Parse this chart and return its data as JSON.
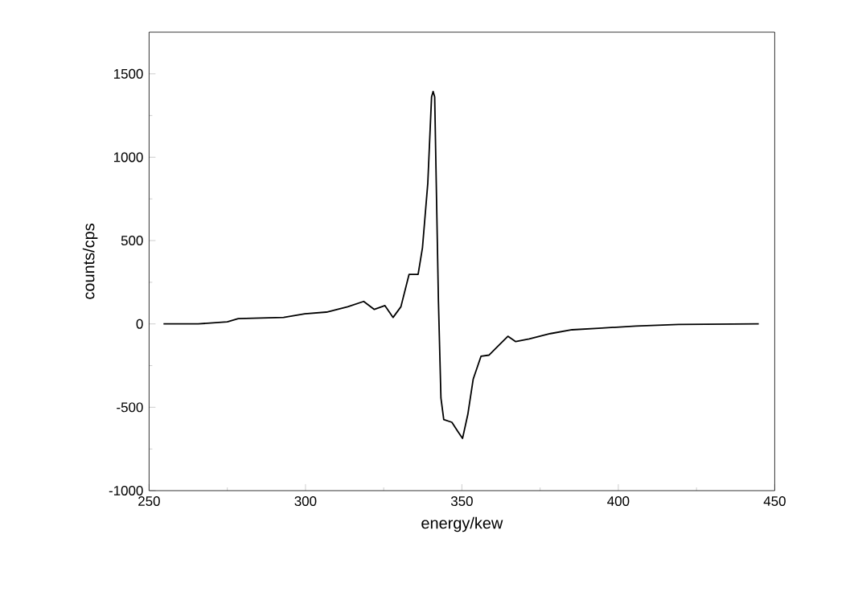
{
  "chart_data": {
    "type": "line",
    "xlabel": "energy/kew",
    "ylabel": "counts/cps",
    "xlim": [
      250,
      450
    ],
    "ylim": [
      -1000,
      1750
    ],
    "xticks": [
      250,
      300,
      350,
      400,
      450
    ],
    "yticks": [
      -1000,
      -500,
      0,
      500,
      1000,
      1500
    ],
    "series": [
      {
        "color": "#000000",
        "x": [
          254.6,
          265.7,
          275,
          278.5,
          293,
          299.8,
          306.7,
          313.5,
          318.6,
          322,
          325.4,
          328,
          330.5,
          333.1,
          336,
          337.4,
          339.1,
          340.3,
          340.8,
          341.3,
          341.8,
          342.5,
          343.3,
          344.2,
          346.8,
          348.5,
          350.2,
          351.9,
          353.6,
          356.1,
          358.7,
          362.1,
          364.7,
          367.2,
          371.5,
          378.3,
          385.2,
          393.7,
          405.6,
          419.3,
          444.9
        ],
        "values": [
          0,
          0,
          13,
          32,
          39,
          61,
          71,
          103,
          135,
          87,
          110,
          39,
          103,
          297,
          297,
          458,
          845,
          1361,
          1394,
          1361,
          845,
          135,
          -445,
          -574,
          -590,
          -639,
          -687,
          -542,
          -332,
          -194,
          -187,
          -123,
          -74,
          -106,
          -90,
          -58,
          -35,
          -26,
          -13,
          -3,
          0
        ]
      }
    ]
  }
}
